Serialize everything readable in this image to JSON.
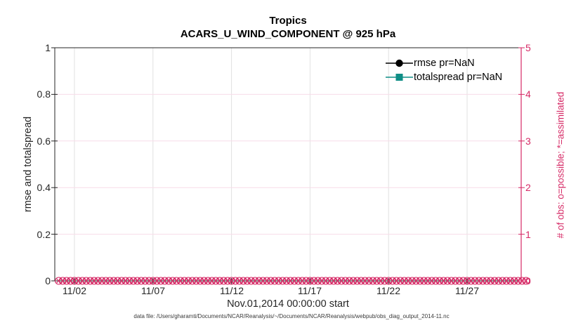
{
  "figure": {
    "title_line1": "Tropics",
    "title_line2": "ACARS_U_WIND_COMPONENT @ 925 hPa",
    "xlabel": "Nov.01,2014 00:00:00 start",
    "caption": "data file: /Users/gharamti/Documents/NCAR/Reanalysis/~/Documents/NCAR/Reanalysis/webpub/obs_diag_output_2014-11.nc"
  },
  "left_axis": {
    "label": "rmse and totalspread",
    "ticks": [
      "0",
      "0.2",
      "0.4",
      "0.6",
      "0.8",
      "1"
    ],
    "color": "#262626"
  },
  "right_axis": {
    "label": "# of obs: o=possible; *=assimilated",
    "ticks": [
      "0",
      "1",
      "2",
      "3",
      "4",
      "5"
    ],
    "color": "#d62a66"
  },
  "x_axis": {
    "ticks": [
      "11/02",
      "11/07",
      "11/12",
      "11/17",
      "11/22",
      "11/27"
    ],
    "tick_days": [
      2,
      7,
      12,
      17,
      22,
      27
    ]
  },
  "legend": {
    "items": [
      {
        "label": "rmse pr=NaN",
        "color": "#000000",
        "marker": "filled-circle"
      },
      {
        "label": "totalspread pr=NaN",
        "color": "#0f8e86",
        "marker": "filled-square"
      }
    ]
  },
  "colors": {
    "axis_dark": "#262626",
    "obs_magenta": "#d62a66",
    "teal": "#0f8e86",
    "grid_vertical": "#e2e2e2",
    "grid_horizontal": "#f7dce8"
  },
  "chart_data": {
    "type": "line",
    "title": "Tropics",
    "subtitle": "ACARS_U_WIND_COMPONENT @ 925 hPa",
    "xlabel": "Nov.01,2014 00:00:00 start",
    "ylabel_left": "rmse and totalspread",
    "ylabel_right": "# of obs: o=possible; *=assimilated",
    "ylim_left": [
      0,
      1
    ],
    "ylim_right": [
      0,
      5
    ],
    "x_tick_labels": [
      "11/02",
      "11/07",
      "11/12",
      "11/17",
      "11/22",
      "11/27"
    ],
    "grid": true,
    "legend_position": "upper-right, no box",
    "series": [
      {
        "name": "rmse pr=NaN",
        "axis": "left",
        "marker": "filled-circle",
        "color": "#000000",
        "values": "all NaN - no line visible"
      },
      {
        "name": "totalspread pr=NaN",
        "axis": "left",
        "marker": "filled-square",
        "color": "#0f8e86",
        "values": "all NaN - no line visible"
      },
      {
        "name": "obs possible (o)",
        "axis": "right",
        "marker": "o",
        "color": "#d62a66",
        "n_points": 120,
        "constant_value": 0,
        "x_first_day": 1.0,
        "x_last_day": 30.75
      },
      {
        "name": "obs assimilated (x)",
        "axis": "right",
        "marker": "x",
        "color": "#d62a66",
        "n_points": 120,
        "constant_value": 0,
        "x_first_day": 1.0,
        "x_last_day": 30.75
      }
    ]
  }
}
